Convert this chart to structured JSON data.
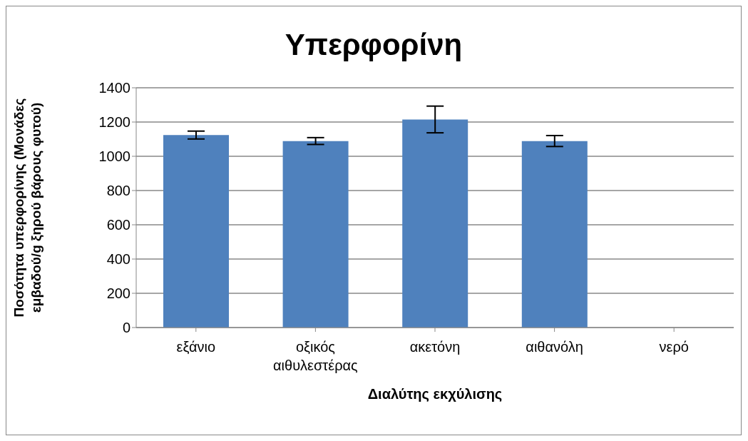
{
  "chart_data": {
    "type": "bar",
    "title": "Υπερφορίνη",
    "xlabel": "Διαλύτης εκχύλισης",
    "ylabel": "Ποσότητα υπερφορίνης (Μονάδες εμβαδού/g ξηρού βάρους φυτού)",
    "categories": [
      "εξάνιο",
      "οξικός αιθυλεστέρας",
      "ακετόνη",
      "αιθανόλη",
      "νερό"
    ],
    "values": [
      1124,
      1089,
      1215,
      1089,
      0
    ],
    "errors": [
      23,
      20,
      78,
      32,
      null
    ],
    "color": "#4f81bd",
    "ylim": [
      0,
      1400
    ],
    "yticks": [
      0,
      200,
      400,
      600,
      800,
      1000,
      1200,
      1400
    ],
    "grid": "y",
    "legend": false
  }
}
